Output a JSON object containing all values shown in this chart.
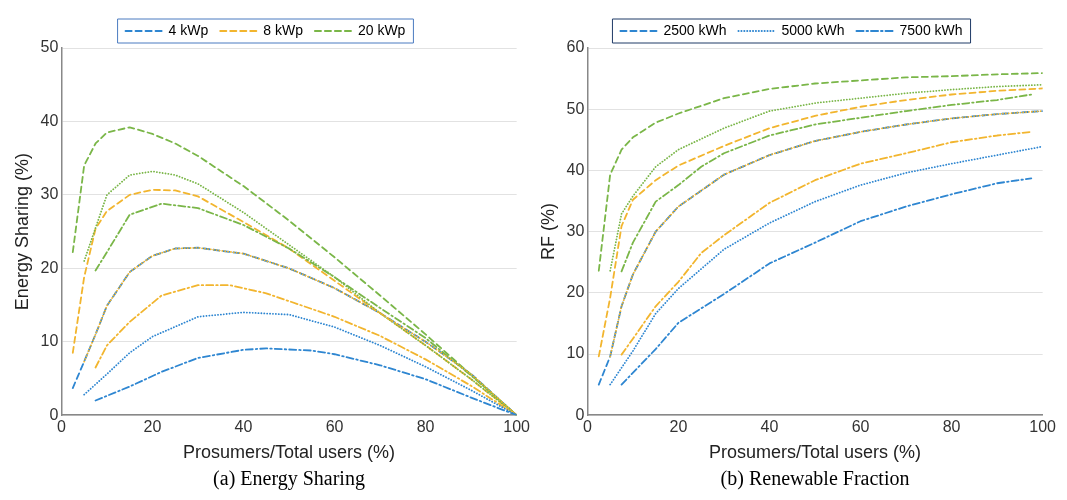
{
  "chart_data": [
    {
      "type": "line",
      "xlabel": "Prosumers/Total users (%)",
      "ylabel": "Energy Sharing (%)",
      "annotations": [
        "(a) Energy Sharing"
      ],
      "xlim": [
        0,
        100
      ],
      "xticks": [
        0,
        20,
        40,
        60,
        80,
        100
      ],
      "ylim": [
        0,
        50
      ],
      "yticks": [
        0,
        10,
        20,
        30,
        40,
        50
      ],
      "grid": "y",
      "legend": "top",
      "marker": "none",
      "series": [
        {
          "name": "4 kWp",
          "color": "#2e86d1",
          "line_style": "dashed",
          "x": [
            2.5,
            5,
            7.5,
            10,
            15,
            20,
            25,
            30,
            40,
            50,
            60,
            70,
            80,
            90,
            100
          ],
          "values": [
            3.7,
            7.3,
            11,
            14.9,
            19.5,
            21.7,
            22.7,
            22.8,
            22,
            20,
            17.3,
            13.9,
            10,
            5.6,
            0
          ]
        },
        {
          "name": "8 kWp",
          "color": "#f2b52e",
          "line_style": "dashed",
          "x": [
            2.5,
            5,
            7.5,
            10,
            15,
            20,
            25,
            30,
            40,
            50,
            60,
            70,
            80,
            90,
            100
          ],
          "values": [
            8.5,
            18.8,
            25.4,
            27.8,
            30,
            30.7,
            30.6,
            29.8,
            26.3,
            22.7,
            18.3,
            13.9,
            9.5,
            4.9,
            0
          ]
        },
        {
          "name": "20 kWp",
          "color": "#7ab648",
          "line_style": "dashed",
          "x": [
            2.5,
            5,
            7.5,
            10,
            15,
            20,
            25,
            30,
            40,
            50,
            60,
            70,
            80,
            90,
            100
          ],
          "values": [
            22.2,
            34,
            37,
            38.5,
            39.2,
            38.3,
            37,
            35.3,
            31.2,
            26.5,
            21.5,
            16.3,
            11,
            5.5,
            0
          ]
        },
        {
          "color": "#7ab648",
          "line_style": "dotted",
          "x": [
            5,
            10,
            15,
            20,
            25,
            30,
            40,
            50,
            60,
            70,
            80,
            90,
            100
          ],
          "values": [
            21,
            30,
            32.7,
            33.2,
            32.7,
            31.5,
            27.6,
            23.2,
            18.8,
            13.9,
            9.5,
            4.9,
            0
          ]
        },
        {
          "color": "#7ab648",
          "line_style": "dashdot",
          "x": [
            7.5,
            10,
            15,
            22,
            30,
            40,
            50,
            60,
            70,
            80,
            90,
            100
          ],
          "values": [
            19.7,
            22.2,
            27.3,
            28.8,
            28.2,
            25.9,
            22.7,
            18.8,
            14.6,
            10.5,
            5.4,
            0
          ]
        },
        {
          "color": "#f2b52e",
          "line_style": "dotted",
          "x": [
            5,
            7.5,
            10,
            15,
            20,
            25,
            30,
            40,
            50,
            60,
            70,
            80,
            90,
            100
          ],
          "values": [
            7.3,
            11,
            14.9,
            19.5,
            21.7,
            22.7,
            22.8,
            22,
            20,
            17.3,
            13.9,
            10,
            5.6,
            0
          ]
        },
        {
          "color": "#f2b52e",
          "line_style": "dashdot",
          "x": [
            7.5,
            10,
            15,
            22,
            30,
            37,
            45,
            60,
            70,
            80,
            90,
            100
          ],
          "values": [
            6.5,
            9.5,
            12.7,
            16.3,
            17.7,
            17.7,
            16.6,
            13.4,
            10.8,
            7.6,
            4,
            0
          ]
        },
        {
          "color": "#2e86d1",
          "line_style": "dotted",
          "x": [
            5,
            10,
            15,
            20,
            30,
            40,
            50,
            60,
            70,
            80,
            90,
            100
          ],
          "values": [
            2.8,
            5.6,
            8.5,
            10.7,
            13.4,
            14,
            13.7,
            12,
            9.5,
            6.6,
            3.4,
            0
          ]
        },
        {
          "color": "#2e86d1",
          "line_style": "dashdot",
          "x": [
            7.5,
            15,
            22,
            30,
            40,
            45,
            55,
            60,
            70,
            80,
            90,
            100
          ],
          "values": [
            2,
            3.9,
            5.9,
            7.8,
            8.9,
            9.1,
            8.8,
            8.3,
            6.8,
            4.9,
            2.4,
            0
          ]
        }
      ]
    },
    {
      "type": "line",
      "xlabel": "Prosumers/Total users (%)",
      "ylabel": "RF (%)",
      "annotations": [
        "(b) Renewable Fraction"
      ],
      "xlim": [
        0,
        100
      ],
      "xticks": [
        0,
        20,
        40,
        60,
        80,
        100
      ],
      "ylim": [
        0,
        60
      ],
      "yticks": [
        0,
        10,
        20,
        30,
        40,
        50,
        60
      ],
      "grid": "y",
      "legend": "top",
      "marker": "none",
      "series": [
        {
          "name": "2500 kWh",
          "color": "#2e86d1",
          "line_style": "dashed",
          "x": [
            2.5,
            5,
            7.5,
            10,
            15,
            20,
            30,
            40,
            50,
            60,
            70,
            80,
            90,
            100
          ],
          "values": [
            5,
            9.6,
            17.8,
            23,
            30,
            34.1,
            39.3,
            42.5,
            44.8,
            46.3,
            47.5,
            48.5,
            49.2,
            49.7
          ]
        },
        {
          "name": "5000 kWh",
          "color": "#2e86d1",
          "line_style": "dotted",
          "x": [
            5,
            10,
            15,
            20,
            30,
            40,
            50,
            60,
            70,
            80,
            90,
            100
          ],
          "values": [
            5,
            10.5,
            16.6,
            20.7,
            27.1,
            31.4,
            34.9,
            37.6,
            39.6,
            41.1,
            42.5,
            43.9
          ]
        },
        {
          "name": "7500 kWh",
          "color": "#2e86d1",
          "line_style": "dashdot",
          "x": [
            7.5,
            15,
            20,
            30,
            40,
            50,
            60,
            70,
            80,
            90,
            97.5
          ],
          "values": [
            5,
            10.8,
            15.1,
            19.8,
            24.8,
            28.2,
            31.7,
            34.1,
            36.1,
            37.9,
            38.7
          ]
        },
        {
          "color": "#7ab648",
          "line_style": "dashed",
          "x": [
            2.5,
            5,
            7.5,
            10,
            15,
            20,
            30,
            40,
            50,
            60,
            70,
            80,
            90,
            100
          ],
          "values": [
            23.6,
            39.3,
            43.4,
            45.4,
            47.8,
            49.3,
            51.8,
            53.3,
            54.2,
            54.7,
            55.2,
            55.4,
            55.7,
            55.9
          ]
        },
        {
          "color": "#7ab648",
          "line_style": "dotted",
          "x": [
            5,
            7.5,
            10,
            15,
            20,
            30,
            40,
            50,
            60,
            70,
            80,
            90,
            100
          ],
          "values": [
            23.6,
            32.9,
            35.8,
            40.6,
            43.4,
            46.9,
            49.7,
            51,
            51.8,
            52.6,
            53.2,
            53.7,
            54
          ]
        },
        {
          "color": "#f2b52e",
          "line_style": "dashed",
          "x": [
            2.5,
            5,
            7.5,
            10,
            15,
            20,
            30,
            40,
            50,
            60,
            70,
            80,
            90,
            100
          ],
          "values": [
            9.6,
            19.2,
            30.9,
            35.2,
            38.4,
            40.8,
            44,
            46.9,
            48.9,
            50.4,
            51.5,
            52.4,
            53,
            53.4
          ]
        },
        {
          "color": "#7ab648",
          "line_style": "dashdot",
          "x": [
            7.5,
            10,
            15,
            20,
            25,
            30,
            40,
            50,
            60,
            70,
            80,
            90,
            97.5
          ],
          "values": [
            23.5,
            28.2,
            34.9,
            37.6,
            40.6,
            42.8,
            45.7,
            47.5,
            48.6,
            49.7,
            50.7,
            51.5,
            52.4
          ]
        },
        {
          "color": "#f2b52e",
          "line_style": "dotted",
          "x": [
            5,
            7.5,
            10,
            15,
            20,
            30,
            40,
            50,
            60,
            70,
            80,
            90,
            100
          ],
          "values": [
            9.6,
            17.8,
            23,
            30,
            34.1,
            39.3,
            42.5,
            44.8,
            46.3,
            47.5,
            48.5,
            49.2,
            49.7
          ]
        },
        {
          "color": "#f2b52e",
          "line_style": "dashdot",
          "x": [
            7.5,
            10,
            15,
            20,
            25,
            30,
            40,
            50,
            60,
            70,
            80,
            90,
            97.5
          ],
          "values": [
            9.9,
            12.5,
            17.8,
            21.8,
            26.5,
            29.4,
            34.7,
            38.4,
            41.1,
            42.8,
            44.6,
            45.7,
            46.3
          ]
        }
      ]
    }
  ]
}
